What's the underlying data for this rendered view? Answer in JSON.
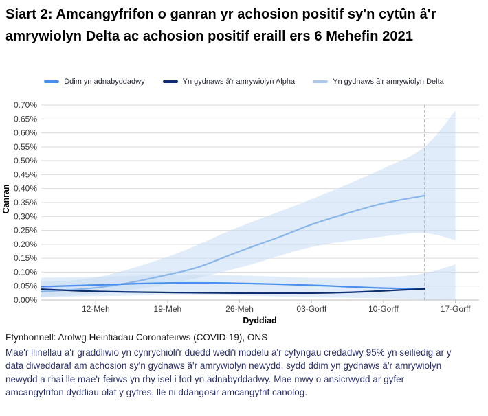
{
  "title": "Siart 2: Amcangyfrifon o ganran yr achosion positif sy'n cytûn â'r amrywiolyn Delta ac achosion positif eraill ers 6 Mehefin 2021",
  "legend": [
    {
      "label": "Ddim yn adnabyddadwy",
      "color": "#4b90ee"
    },
    {
      "label": "Yn gydnaws â'r amrywiolyn Alpha",
      "color": "#0d2e6e"
    },
    {
      "label": "Yn gydnaws â'r amrywiolyn Delta",
      "color": "#a9c9f0"
    }
  ],
  "chart_data": {
    "type": "line",
    "title": "Siart 2: Amcangyfrifon o ganran yr achosion positif sy'n cytûn â'r amrywiolyn Delta ac achosion positif eraill ers 6 Mehefin 2021",
    "xlabel": "Dyddiad",
    "ylabel": "Canran",
    "x_axis": {
      "start_date": "6 Mehefin 2021",
      "domain_days": [
        0.7,
        43.3
      ],
      "tick_days": [
        6,
        13,
        20,
        27,
        34,
        41
      ],
      "tick_labels": [
        "12-Meh",
        "19-Meh",
        "26-Meh",
        "03-Gorff",
        "10-Gorff",
        "17-Gorff"
      ]
    },
    "y_axis": {
      "min": 0,
      "max": 0.7,
      "step": 0.05,
      "tick_labels": [
        "0.00%",
        "0.05%",
        "0.10%",
        "0.15%",
        "0.20%",
        "0.25%",
        "0.30%",
        "0.35%",
        "0.40%",
        "0.45%",
        "0.50%",
        "0.55%",
        "0.60%",
        "0.65%",
        "0.70%"
      ]
    },
    "grid": "horizontal",
    "legend_position": "top",
    "cutoff": {
      "day": 38,
      "color": "#b3b8bd",
      "style": "dashed",
      "meaning": "dim amcangyfrif canolog wedi'r dyddiad hwn"
    },
    "bands": [
      {
        "name": "Yn gydnaws â'r amrywiolyn Delta — cyfwng credadwy 95%",
        "color": "#c7dcf4",
        "opacity": 0.55,
        "upper": [
          [
            0.7,
            0.066
          ],
          [
            6,
            0.081
          ],
          [
            13,
            0.155
          ],
          [
            20,
            0.263
          ],
          [
            27,
            0.362
          ],
          [
            34,
            0.472
          ],
          [
            38,
            0.55
          ],
          [
            41,
            0.68
          ]
        ],
        "lower": [
          [
            0.7,
            0.012
          ],
          [
            6,
            0.022
          ],
          [
            13,
            0.057
          ],
          [
            20,
            0.116
          ],
          [
            27,
            0.19
          ],
          [
            34,
            0.228
          ],
          [
            38,
            0.24
          ],
          [
            41,
            0.215
          ]
        ]
      },
      {
        "name": "Ddim yn adnabyddadwy / Alpha — cyfwng credadwy 95%",
        "color": "#c7dcf4",
        "opacity": 0.55,
        "upper": [
          [
            0.7,
            0.08
          ],
          [
            6,
            0.083
          ],
          [
            13,
            0.09
          ],
          [
            20,
            0.088
          ],
          [
            27,
            0.08
          ],
          [
            34,
            0.082
          ],
          [
            38,
            0.096
          ],
          [
            41,
            0.128
          ]
        ],
        "lower": [
          [
            0.7,
            0.012
          ],
          [
            6,
            0.014
          ],
          [
            13,
            0.018
          ],
          [
            20,
            0.016
          ],
          [
            27,
            0.01
          ],
          [
            34,
            0.006
          ],
          [
            38,
            0.002
          ],
          [
            41,
            0.0
          ]
        ]
      }
    ],
    "series": [
      {
        "name": "Yn gydnaws â'r amrywiolyn Delta",
        "color": "#8ab6ea",
        "width": 2.25,
        "points": [
          [
            0.7,
            0.03
          ],
          [
            3,
            0.035
          ],
          [
            6,
            0.044
          ],
          [
            9,
            0.06
          ],
          [
            13,
            0.091
          ],
          [
            16,
            0.118
          ],
          [
            20,
            0.175
          ],
          [
            24,
            0.228
          ],
          [
            27,
            0.271
          ],
          [
            31,
            0.317
          ],
          [
            34,
            0.347
          ],
          [
            38,
            0.375
          ]
        ]
      },
      {
        "name": "Ddim yn adnabyddadwy",
        "color": "#4b90ee",
        "width": 2.25,
        "points": [
          [
            0.7,
            0.048
          ],
          [
            6,
            0.054
          ],
          [
            13,
            0.061
          ],
          [
            20,
            0.06
          ],
          [
            27,
            0.053
          ],
          [
            31,
            0.047
          ],
          [
            34,
            0.043
          ],
          [
            38,
            0.04
          ]
        ]
      },
      {
        "name": "Yn gydnaws â'r amrywiolyn Alpha",
        "color": "#0d2e6e",
        "width": 2.25,
        "points": [
          [
            0.7,
            0.039
          ],
          [
            6,
            0.031
          ],
          [
            13,
            0.027
          ],
          [
            20,
            0.025
          ],
          [
            27,
            0.025
          ],
          [
            31,
            0.028
          ],
          [
            34,
            0.033
          ],
          [
            38,
            0.04
          ]
        ]
      }
    ]
  },
  "footer": {
    "source": "Ffynhonnell: Arolwg Heintiadau Coronafeirws (COVID-19), ONS",
    "note": "Mae'r llinellau a'r graddliwio yn cynrychioli'r duedd wedi'i modelu a'r cyfyngau credadwy 95% yn seiliedig ar y data diweddaraf am achosion sy'n gydnaws â'r amrywiolyn newydd, sydd ddim yn gydnaws â'r amrywiolyn newydd a rhai lle mae'r feirws yn rhy isel i fod yn adnabyddadwy. Mae mwy o ansicrwydd ar gyfer amcangyfrifon dyddiau olaf y gyfres, lle ni ddangosir amcangyfrif canolog."
  },
  "colors": {
    "gridline": "#d9d9d9",
    "axis_line": "#bdbdbd",
    "tick_mark": "#c9c9c9",
    "tick_text": "#3a3a3a",
    "band_fill": "#c7dcf4",
    "cutoff_line": "#b3b8bd",
    "note_text": "#2b3168"
  }
}
